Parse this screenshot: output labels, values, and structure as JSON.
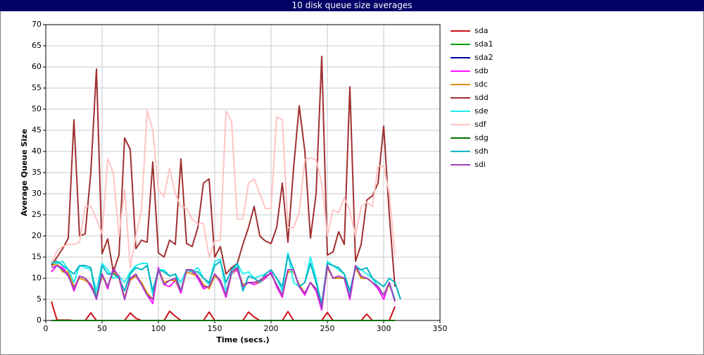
{
  "chart_data": {
    "type": "line",
    "title": "10 disk queue size averages",
    "x_label": "Time (secs.)",
    "y_label": "Average Queue Size",
    "xlim": [
      0,
      350
    ],
    "xticks": [
      0,
      50,
      100,
      150,
      200,
      250,
      300,
      350
    ],
    "ylim": [
      0,
      70
    ],
    "yticks": [
      0,
      5,
      10,
      15,
      20,
      25,
      30,
      35,
      40,
      45,
      50,
      55,
      60,
      65,
      70
    ],
    "grid": true,
    "legend": "right",
    "x": [
      5,
      10,
      15,
      20,
      25,
      30,
      35,
      40,
      45,
      50,
      55,
      60,
      65,
      70,
      75,
      80,
      85,
      90,
      95,
      100,
      105,
      110,
      115,
      120,
      125,
      130,
      135,
      140,
      145,
      150,
      155,
      160,
      165,
      170,
      175,
      180,
      185,
      190,
      195,
      200,
      205,
      210,
      215,
      220,
      225,
      230,
      235,
      240,
      245,
      250,
      255,
      260,
      265,
      270,
      275,
      280,
      285,
      290,
      295,
      300,
      305,
      310,
      315
    ],
    "series": [
      {
        "name": "sda",
        "color": "#d0101a",
        "values": [
          4.5,
          0.1,
          0.1,
          0.1,
          0,
          0,
          0,
          1.8,
          0,
          0,
          0,
          0,
          0,
          0,
          1.8,
          0.5,
          0,
          0,
          0,
          0,
          0,
          2.2,
          1,
          0,
          0,
          0,
          0,
          0,
          2,
          0,
          0,
          0,
          0,
          0,
          0,
          2,
          0.8,
          0,
          0,
          0,
          0,
          0,
          2.1,
          0,
          0,
          0,
          0,
          0,
          0,
          1.9,
          0,
          0,
          0,
          0,
          0,
          0,
          1.5,
          0,
          0,
          0,
          0,
          3.3,
          null
        ]
      },
      {
        "name": "sda1",
        "color": "#00a000",
        "values": [
          0,
          0,
          0,
          0,
          0,
          0,
          0,
          0,
          0,
          0,
          0,
          0,
          0,
          0,
          0,
          0,
          0,
          0,
          0,
          0,
          0,
          0,
          0,
          0,
          0,
          0,
          0,
          0,
          0,
          0,
          0,
          0,
          0,
          0,
          0,
          0,
          0,
          0,
          0,
          0,
          0,
          0,
          0,
          0,
          0,
          0,
          0,
          0,
          0,
          0,
          0,
          0,
          0,
          0,
          0,
          0,
          0,
          0,
          0,
          0,
          0,
          0,
          null
        ]
      },
      {
        "name": "sda2",
        "color": "#0000a0",
        "values": [
          0,
          0,
          0,
          0,
          0,
          0,
          0,
          0,
          0,
          0,
          0,
          0,
          0,
          0,
          0,
          0,
          0,
          0,
          0,
          0,
          0,
          0,
          0,
          0,
          0,
          0,
          0,
          0,
          0,
          0,
          0,
          0,
          0,
          0,
          0,
          0,
          0,
          0,
          0,
          0,
          0,
          0,
          0,
          0,
          0,
          0,
          0,
          0,
          0,
          0,
          0,
          0,
          0,
          0,
          0,
          0,
          0,
          0,
          0,
          0,
          0,
          0,
          null
        ]
      },
      {
        "name": "sdb",
        "color": "#ff10ff",
        "values": [
          11.5,
          13,
          12.5,
          11,
          7,
          10.5,
          10,
          8,
          5.5,
          11,
          7.5,
          12.5,
          10,
          5,
          10,
          10.5,
          8.5,
          6,
          4,
          12.5,
          8.5,
          8,
          9.5,
          6.5,
          12,
          11.5,
          10,
          7.5,
          8,
          11,
          9,
          5.5,
          11,
          12,
          8,
          9,
          8.5,
          9,
          10,
          11.5,
          8,
          5.5,
          12,
          12,
          8,
          6,
          9,
          7,
          2.5,
          13,
          10,
          10.5,
          10,
          5,
          13,
          10,
          10,
          9,
          7.5,
          5,
          9,
          4.5,
          null
        ]
      },
      {
        "name": "sdc",
        "color": "#e09000",
        "values": [
          13,
          13.5,
          11.5,
          11.5,
          8,
          10,
          9.5,
          8.5,
          6,
          10.5,
          8,
          11.5,
          10,
          5.5,
          9.5,
          10.5,
          9,
          6.5,
          5,
          12,
          9,
          9.5,
          9.5,
          7,
          11.5,
          11,
          10.5,
          8.5,
          7.5,
          10.5,
          9.5,
          6,
          11,
          12.5,
          8.5,
          9,
          9,
          9,
          10.5,
          11,
          8.5,
          6,
          11.5,
          11.5,
          8.5,
          6.5,
          9,
          7.5,
          3.5,
          12.5,
          10,
          10,
          10,
          6,
          12.5,
          10,
          10,
          9,
          8,
          6,
          8.5,
          5,
          null
        ]
      },
      {
        "name": "sdd",
        "color": "#a03030",
        "values": [
          13,
          15,
          17,
          19.5,
          47.5,
          20,
          20.5,
          35,
          59.5,
          15.8,
          19.3,
          11.5,
          15.5,
          43.2,
          40.5,
          17,
          19,
          18.5,
          37.5,
          16,
          15,
          19,
          18,
          38.2,
          18.2,
          17.5,
          22,
          32.5,
          33.5,
          15,
          17.5,
          11,
          12.5,
          13.5,
          18,
          22,
          27,
          20,
          18.8,
          18.2,
          22,
          32.5,
          18.5,
          36,
          50.8,
          40,
          19.5,
          30,
          62.5,
          15.5,
          16.2,
          21,
          18,
          55.3,
          14,
          18,
          28.5,
          29.5,
          32.5,
          46,
          25,
          8,
          null
        ]
      },
      {
        "name": "sde",
        "color": "#20f0f0",
        "values": [
          14,
          13.5,
          14,
          12,
          9,
          13,
          12.5,
          12,
          7,
          13.5,
          12,
          10,
          10.5,
          9,
          11.5,
          13,
          13.5,
          13.5,
          6,
          12,
          12,
          10.5,
          11,
          9,
          12,
          11.5,
          12.5,
          10,
          8.5,
          14,
          14.5,
          7,
          11,
          13.5,
          11,
          11.5,
          10,
          10.5,
          11,
          12,
          10,
          7,
          16,
          9,
          8,
          9,
          15,
          10,
          3,
          14,
          13,
          12,
          11,
          6,
          13,
          12,
          11,
          10,
          8,
          6,
          9,
          5,
          null
        ]
      },
      {
        "name": "sdf",
        "color": "#ffc4c4",
        "values": [
          13.5,
          16.5,
          17.5,
          18,
          18,
          18.5,
          27,
          27,
          24,
          20.5,
          38.3,
          34.8,
          20,
          31,
          12.5,
          20,
          26,
          49.7,
          45,
          31,
          29.3,
          36,
          30,
          27,
          26.5,
          24,
          22.8,
          23,
          15,
          18.8,
          19,
          49.5,
          47,
          24,
          24,
          32.5,
          33.5,
          30,
          26.5,
          26.5,
          48.2,
          47.5,
          22,
          22,
          25.5,
          38,
          38.5,
          38,
          32.5,
          20,
          26.2,
          25.5,
          29,
          26,
          20,
          27,
          28,
          27,
          36.5,
          36.5,
          30,
          15.5,
          null
        ]
      },
      {
        "name": "sdg",
        "color": "#007000",
        "values": [
          0,
          0,
          0,
          0,
          0,
          0,
          0,
          0,
          0,
          0,
          0,
          0,
          0,
          0,
          0,
          0,
          0,
          0,
          0,
          0,
          0,
          0,
          0,
          0,
          0,
          0,
          0,
          0,
          0,
          0,
          0,
          0,
          0,
          0,
          0,
          0,
          0,
          0,
          0,
          0,
          0,
          0,
          0,
          0,
          0,
          0,
          0,
          0,
          0,
          0,
          0,
          0,
          0,
          0,
          0,
          0,
          0,
          0,
          0,
          0,
          0,
          0,
          null
        ]
      },
      {
        "name": "sdh",
        "color": "#00b4c4",
        "values": [
          13.5,
          14,
          13,
          12,
          11,
          13,
          13,
          12.5,
          5,
          13,
          11,
          11,
          10,
          7,
          11,
          12.5,
          12,
          13,
          7,
          12,
          11.5,
          10.5,
          11,
          7,
          12,
          11.5,
          11.5,
          10,
          9,
          13,
          14,
          9,
          12,
          13.5,
          7,
          10.5,
          10,
          9,
          11,
          12,
          10,
          8,
          15.5,
          12,
          8,
          9,
          13.5,
          9,
          4,
          13.5,
          13,
          12.5,
          11,
          7,
          12.5,
          12,
          12.5,
          10,
          9,
          8,
          10,
          9,
          5
        ]
      },
      {
        "name": "sdi",
        "color": "#a040c0",
        "values": [
          12.5,
          13,
          12,
          10.5,
          7.5,
          10.5,
          10,
          8.5,
          5,
          11,
          8,
          12,
          10.5,
          5,
          10,
          11,
          8.5,
          6,
          5,
          12,
          8.5,
          9.5,
          10,
          7,
          12,
          12,
          10.5,
          8,
          8,
          11,
          9.5,
          6,
          11.5,
          12.5,
          8,
          9,
          9,
          9.5,
          10.5,
          11,
          8.5,
          6,
          12,
          12,
          8,
          6.5,
          9,
          7.5,
          3,
          13,
          10,
          10.5,
          10,
          5.5,
          13,
          10.5,
          10,
          9,
          8,
          6,
          9,
          4.5,
          null
        ]
      }
    ]
  }
}
